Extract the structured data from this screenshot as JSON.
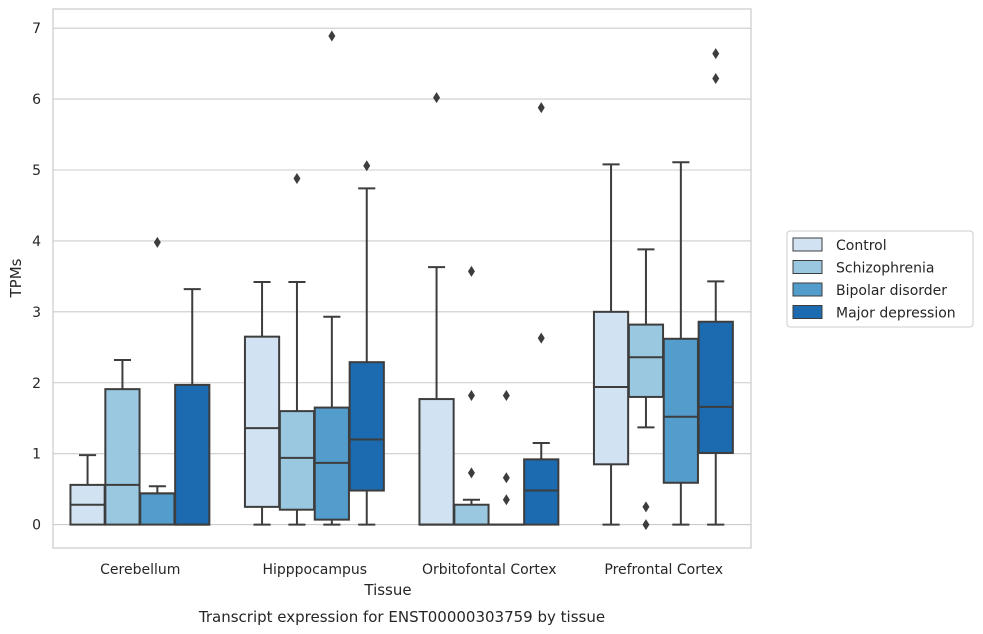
{
  "chart_data": {
    "type": "box",
    "title": "",
    "caption": "Transcript expression for ENST00000303759 by tissue",
    "xlabel": "Tissue",
    "ylabel": "TPMs",
    "ylim": [
      -0.33,
      7.27
    ],
    "yticks": [
      "0",
      "1",
      "2",
      "3",
      "4",
      "5",
      "6",
      "7"
    ],
    "grid": "horizontal",
    "legend_position": "right",
    "categories": [
      "Cerebellum",
      "Hipppocampus",
      "Orbitofontal Cortex",
      "Prefrontal Cortex"
    ],
    "series": [
      {
        "name": "Control",
        "color": "#d1e2f2",
        "boxes": [
          {
            "whislo": 0,
            "q1": 0,
            "med": 0.28,
            "q3": 0.56,
            "whishi": 0.98,
            "fliers": []
          },
          {
            "whislo": 0,
            "q1": 0.25,
            "med": 1.36,
            "q3": 2.65,
            "whishi": 3.42,
            "fliers": []
          },
          {
            "whislo": 0,
            "q1": 0,
            "med": 0,
            "q3": 1.77,
            "whishi": 3.63,
            "fliers": [
              6.02
            ]
          },
          {
            "whislo": 0,
            "q1": 0.85,
            "med": 1.94,
            "q3": 3.0,
            "whishi": 5.08,
            "fliers": []
          }
        ]
      },
      {
        "name": "Schizophrenia",
        "color": "#9ac8e0",
        "boxes": [
          {
            "whislo": 0,
            "q1": 0,
            "med": 0.56,
            "q3": 1.91,
            "whishi": 2.32,
            "fliers": []
          },
          {
            "whislo": 0,
            "q1": 0.21,
            "med": 0.94,
            "q3": 1.6,
            "whishi": 3.42,
            "fliers": [
              4.88
            ]
          },
          {
            "whislo": 0,
            "q1": 0,
            "med": 0,
            "q3": 0.28,
            "whishi": 0.35,
            "fliers": [
              0.73,
              1.82,
              3.57
            ]
          },
          {
            "whislo": 1.37,
            "q1": 1.8,
            "med": 2.36,
            "q3": 2.82,
            "whishi": 3.88,
            "fliers": [
              0.25,
              0.0
            ]
          }
        ]
      },
      {
        "name": "Bipolar disorder",
        "color": "#529dcc",
        "boxes": [
          {
            "whislo": 0,
            "q1": 0,
            "med": 0.44,
            "q3": 0.44,
            "whishi": 0.54,
            "fliers": [
              3.98
            ]
          },
          {
            "whislo": 0,
            "q1": 0.07,
            "med": 0.87,
            "q3": 1.65,
            "whishi": 2.93,
            "fliers": [
              6.89
            ]
          },
          {
            "whislo": 0,
            "q1": 0,
            "med": 0,
            "q3": 0,
            "whishi": 0,
            "fliers": [
              0.35,
              0.66,
              1.82
            ]
          },
          {
            "whislo": 0,
            "q1": 0.59,
            "med": 1.52,
            "q3": 2.62,
            "whishi": 5.11,
            "fliers": []
          }
        ]
      },
      {
        "name": "Major depression",
        "color": "#1c6aaf",
        "boxes": [
          {
            "whislo": 0,
            "q1": 0,
            "med": 0,
            "q3": 1.97,
            "whishi": 3.32,
            "fliers": []
          },
          {
            "whislo": 0,
            "q1": 0.48,
            "med": 1.2,
            "q3": 2.29,
            "whishi": 4.74,
            "fliers": [
              5.06
            ]
          },
          {
            "whislo": 0,
            "q1": 0,
            "med": 0.48,
            "q3": 0.92,
            "whishi": 1.15,
            "fliers": [
              2.63,
              5.88
            ]
          },
          {
            "whislo": 0,
            "q1": 1.01,
            "med": 1.66,
            "q3": 2.86,
            "whishi": 3.43,
            "fliers": [
              6.29,
              6.64
            ]
          }
        ]
      }
    ]
  }
}
